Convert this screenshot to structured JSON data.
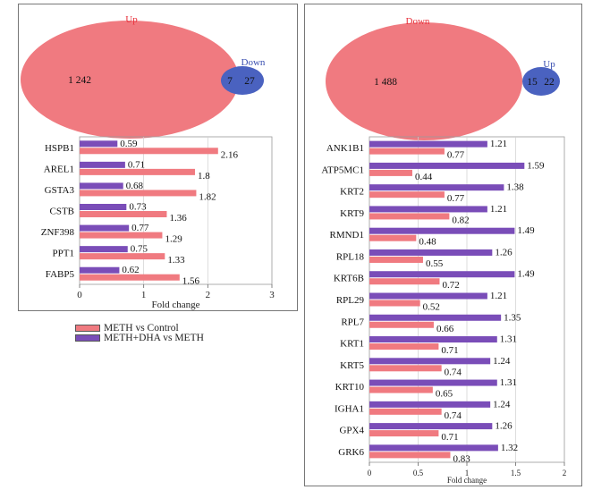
{
  "colors": {
    "meth_vs_control": "#f07a80",
    "meth_dha_vs_meth": "#7a4db8",
    "up_ellipse": "#f07a80",
    "down_ellipse": "#4a62c0",
    "up_label_red": "#e8303a",
    "down_label_blue": "#3a4fb0"
  },
  "left_venn": {
    "big_label": "Up",
    "small_label": "Down",
    "big_count": "1 242",
    "overlap_count": "7",
    "small_count": "27"
  },
  "right_venn": {
    "big_label": "Down",
    "small_label": "Up",
    "big_count": "1 488",
    "overlap_count": "15",
    "small_count": "22"
  },
  "legend": {
    "items": [
      "METH vs Control",
      "METH+DHA vs METH"
    ]
  },
  "chart_data": [
    {
      "type": "bar",
      "orientation": "horizontal",
      "categories": [
        "HSPB1",
        "AREL1",
        "GSTA3",
        "CSTB",
        "ZNF398",
        "PPT1",
        "FABP5"
      ],
      "series": [
        {
          "name": "METH+DHA vs METH",
          "values": [
            0.59,
            0.71,
            0.68,
            0.73,
            0.77,
            0.75,
            0.62
          ],
          "labels": [
            "0.59",
            "0.71",
            "0.68",
            "0.73",
            "0.77",
            "0.75",
            "0.62"
          ]
        },
        {
          "name": "METH vs Control",
          "values": [
            2.16,
            1.8,
            1.82,
            1.36,
            1.29,
            1.33,
            1.56
          ],
          "labels": [
            "2.16",
            "1.8",
            "1.82",
            "1.36",
            "1.29",
            "1.33",
            "1.56"
          ]
        }
      ],
      "xlabel": "Fold change",
      "xlim": [
        0,
        3
      ],
      "xticks": [
        "0",
        "1",
        "2",
        "3"
      ]
    },
    {
      "type": "bar",
      "orientation": "horizontal",
      "categories": [
        "ANK1B1",
        "ATP5MC1",
        "KRT2",
        "KRT9",
        "RMND1",
        "RPL18",
        "KRT6B",
        "RPL29",
        "RPL7",
        "KRT1",
        "KRT5",
        "KRT10",
        "IGHA1",
        "GPX4",
        "GRK6"
      ],
      "series": [
        {
          "name": "METH+DHA vs METH",
          "values": [
            1.21,
            1.59,
            1.38,
            1.21,
            1.49,
            1.26,
            1.49,
            1.21,
            1.35,
            1.31,
            1.24,
            1.31,
            1.24,
            1.26,
            1.32
          ],
          "labels": [
            "1.21",
            "1.59",
            "1.38",
            "1.21",
            "1.49",
            "1.26",
            "1.49",
            "1.21",
            "1.35",
            "1.31",
            "1.24",
            "1.31",
            "1.24",
            "1.26",
            "1.32"
          ]
        },
        {
          "name": "METH vs Control",
          "values": [
            0.77,
            0.44,
            0.77,
            0.82,
            0.48,
            0.55,
            0.72,
            0.52,
            0.66,
            0.71,
            0.74,
            0.65,
            0.74,
            0.71,
            0.83
          ],
          "labels": [
            "0.77",
            "0.44",
            "0.77",
            "0.82",
            "0.48",
            "0.55",
            "0.72",
            "0.52",
            "0.66",
            "0.71",
            "0.74",
            "0.65",
            "0.74",
            "0.71",
            "0.83"
          ]
        }
      ],
      "xlabel": "Fold change",
      "xlim": [
        0,
        2
      ],
      "xticks": [
        "0",
        "0.5",
        "1",
        "1.5",
        "2"
      ]
    }
  ]
}
